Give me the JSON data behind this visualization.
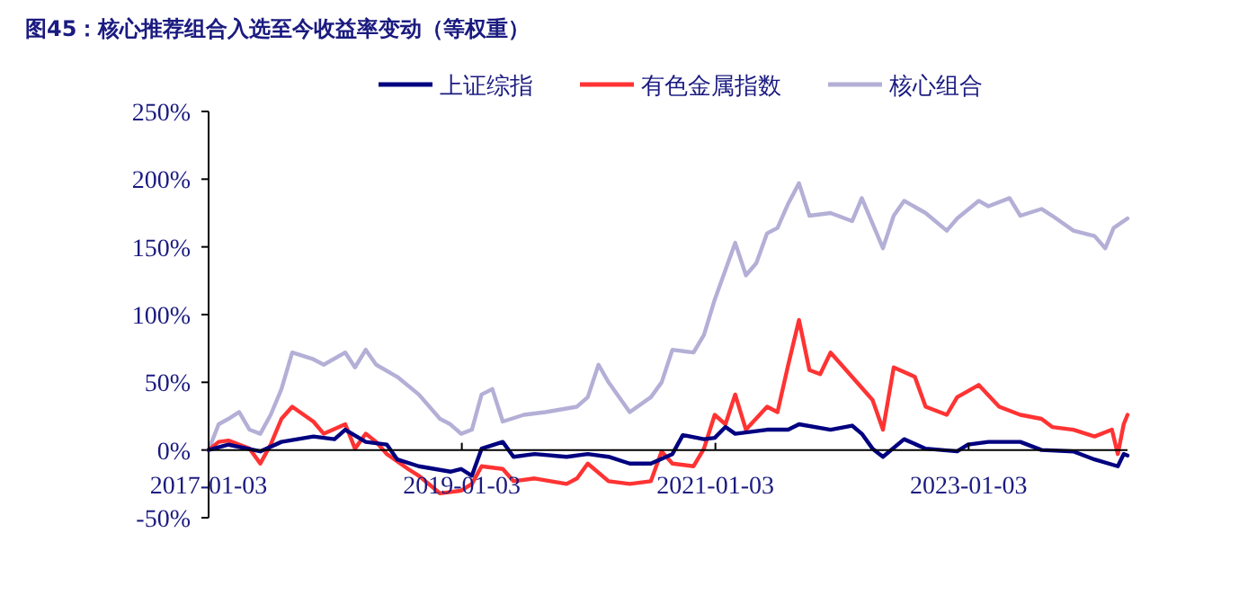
{
  "chart_data": {
    "type": "line",
    "title": "图45：核心推荐组合入选至今收益率变动（等权重）",
    "legend": "top",
    "grid": false,
    "xlim": [
      "2017-01-03",
      "2024-04-05"
    ],
    "xticks": [
      {
        "value": "2017-01-03",
        "label": "2017-01-03"
      },
      {
        "value": "2019-01-03",
        "label": "2019-01-03"
      },
      {
        "value": "2021-01-03",
        "label": "2021-01-03"
      },
      {
        "value": "2023-01-03",
        "label": "2023-01-03"
      }
    ],
    "ylim": [
      -50,
      250
    ],
    "yticks": [
      {
        "value": -50,
        "label": "-50%"
      },
      {
        "value": 0,
        "label": "0%"
      },
      {
        "value": 50,
        "label": "50%"
      },
      {
        "value": 100,
        "label": "100%"
      },
      {
        "value": 150,
        "label": "150%"
      },
      {
        "value": 200,
        "label": "200%"
      },
      {
        "value": 250,
        "label": "250%"
      }
    ],
    "series": [
      {
        "name": "上证综指",
        "color": "#000080",
        "x": [
          "2017-01-03",
          "2017-03-01",
          "2017-06-01",
          "2017-08-01",
          "2017-11-01",
          "2018-01-01",
          "2018-02-01",
          "2018-04-01",
          "2018-06-01",
          "2018-07-01",
          "2018-09-01",
          "2018-12-01",
          "2019-01-01",
          "2019-02-01",
          "2019-03-01",
          "2019-05-01",
          "2019-06-01",
          "2019-08-01",
          "2019-11-01",
          "2020-01-01",
          "2020-03-01",
          "2020-05-01",
          "2020-07-01",
          "2020-09-01",
          "2020-10-01",
          "2020-12-01",
          "2021-01-01",
          "2021-02-01",
          "2021-03-01",
          "2021-06-01",
          "2021-08-01",
          "2021-09-01",
          "2021-12-01",
          "2022-02-01",
          "2022-03-01",
          "2022-04-01",
          "2022-05-01",
          "2022-07-01",
          "2022-09-01",
          "2022-12-01",
          "2023-01-01",
          "2023-03-01",
          "2023-06-01",
          "2023-08-01",
          "2023-11-01",
          "2024-01-01",
          "2024-03-08",
          "2024-03-25",
          "2024-04-05"
        ],
        "values": [
          0,
          4,
          -1,
          6,
          10,
          8,
          15,
          6,
          4,
          -7,
          -12,
          -16,
          -14,
          -19,
          1,
          6,
          -5,
          -3,
          -5,
          -3,
          -5,
          -10,
          -10,
          -3,
          11,
          8,
          9,
          17,
          12,
          15,
          15,
          19,
          15,
          18,
          12,
          1,
          -5,
          8,
          1,
          -1,
          4,
          6,
          6,
          0,
          -1,
          -7,
          -12,
          -3,
          -4
        ]
      },
      {
        "name": "有色金属指数",
        "color": "#ff3333",
        "x": [
          "2017-01-03",
          "2017-02-01",
          "2017-03-01",
          "2017-05-01",
          "2017-06-01",
          "2017-07-01",
          "2017-08-01",
          "2017-09-01",
          "2017-11-01",
          "2017-12-01",
          "2018-02-01",
          "2018-03-01",
          "2018-04-01",
          "2018-05-01",
          "2018-06-01",
          "2018-08-01",
          "2018-09-01",
          "2018-11-01",
          "2019-01-01",
          "2019-02-01",
          "2019-03-01",
          "2019-05-01",
          "2019-06-01",
          "2019-08-01",
          "2019-11-01",
          "2019-12-01",
          "2020-01-01",
          "2020-03-01",
          "2020-05-01",
          "2020-07-01",
          "2020-08-01",
          "2020-09-01",
          "2020-11-01",
          "2020-12-01",
          "2021-01-01",
          "2021-02-01",
          "2021-03-01",
          "2021-04-01",
          "2021-06-01",
          "2021-07-01",
          "2021-08-01",
          "2021-09-01",
          "2021-10-01",
          "2021-11-01",
          "2021-12-01",
          "2022-02-01",
          "2022-04-01",
          "2022-05-01",
          "2022-06-01",
          "2022-08-01",
          "2022-09-01",
          "2022-11-01",
          "2022-12-01",
          "2023-02-01",
          "2023-04-01",
          "2023-06-01",
          "2023-08-01",
          "2023-09-01",
          "2023-11-01",
          "2024-01-01",
          "2024-02-20",
          "2024-03-08",
          "2024-03-25",
          "2024-04-05"
        ],
        "values": [
          0,
          6,
          7,
          1,
          -10,
          4,
          23,
          32,
          21,
          12,
          19,
          1,
          12,
          6,
          -3,
          -14,
          -19,
          -32,
          -30,
          -25,
          -12,
          -14,
          -23,
          -21,
          -25,
          -21,
          -10,
          -23,
          -25,
          -23,
          -1,
          -10,
          -12,
          1,
          26,
          19,
          41,
          15,
          32,
          28,
          63,
          96,
          59,
          56,
          72,
          54,
          37,
          15,
          61,
          54,
          32,
          26,
          39,
          48,
          32,
          26,
          23,
          17,
          15,
          10,
          15,
          -3,
          19,
          26
        ]
      },
      {
        "name": "核心组合",
        "color": "#b3afd6",
        "x": [
          "2017-01-03",
          "2017-02-01",
          "2017-03-01",
          "2017-04-01",
          "2017-05-01",
          "2017-06-01",
          "2017-07-01",
          "2017-08-01",
          "2017-09-01",
          "2017-11-01",
          "2017-12-01",
          "2018-02-01",
          "2018-03-01",
          "2018-04-01",
          "2018-05-01",
          "2018-07-01",
          "2018-09-01",
          "2018-11-01",
          "2018-12-01",
          "2019-01-01",
          "2019-02-01",
          "2019-03-01",
          "2019-04-01",
          "2019-05-01",
          "2019-07-01",
          "2019-09-01",
          "2019-12-01",
          "2020-01-01",
          "2020-02-01",
          "2020-03-01",
          "2020-05-01",
          "2020-07-01",
          "2020-08-01",
          "2020-09-01",
          "2020-11-01",
          "2020-12-01",
          "2021-01-01",
          "2021-02-01",
          "2021-03-01",
          "2021-04-01",
          "2021-05-01",
          "2021-06-01",
          "2021-07-01",
          "2021-08-01",
          "2021-09-01",
          "2021-10-01",
          "2021-12-01",
          "2022-02-01",
          "2022-03-01",
          "2022-05-01",
          "2022-06-01",
          "2022-07-01",
          "2022-09-01",
          "2022-11-01",
          "2022-12-01",
          "2023-02-01",
          "2023-03-01",
          "2023-05-01",
          "2023-06-01",
          "2023-08-01",
          "2023-09-01",
          "2023-11-01",
          "2024-01-01",
          "2024-02-01",
          "2024-02-25",
          "2024-04-05"
        ],
        "values": [
          0,
          19,
          23,
          28,
          15,
          12,
          26,
          45,
          72,
          67,
          63,
          72,
          61,
          74,
          63,
          54,
          41,
          23,
          19,
          12,
          15,
          41,
          45,
          21,
          26,
          28,
          32,
          39,
          63,
          50,
          28,
          39,
          50,
          74,
          72,
          85,
          111,
          133,
          153,
          129,
          138,
          160,
          164,
          182,
          197,
          173,
          175,
          169,
          186,
          149,
          173,
          184,
          175,
          162,
          171,
          184,
          180,
          186,
          173,
          178,
          173,
          162,
          158,
          149,
          164,
          171
        ]
      }
    ]
  }
}
